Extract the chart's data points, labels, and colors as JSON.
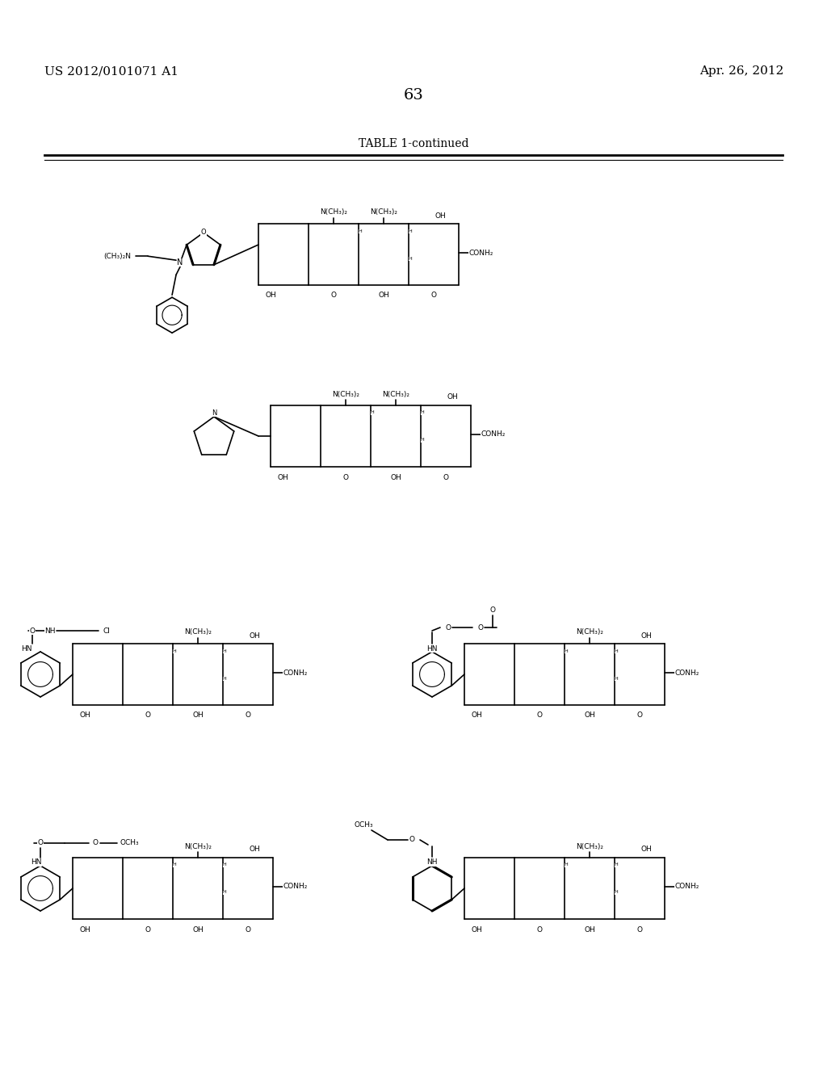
{
  "page_number": "63",
  "patent_number": "US 2012/0101071 A1",
  "patent_date": "Apr. 26, 2012",
  "table_title": "TABLE 1-continued",
  "background_color": "#ffffff",
  "text_color": "#000000",
  "font_size_header": 11,
  "font_size_page": 14,
  "font_size_table": 10,
  "line_color": "#000000",
  "rw": 62,
  "rh": 38
}
